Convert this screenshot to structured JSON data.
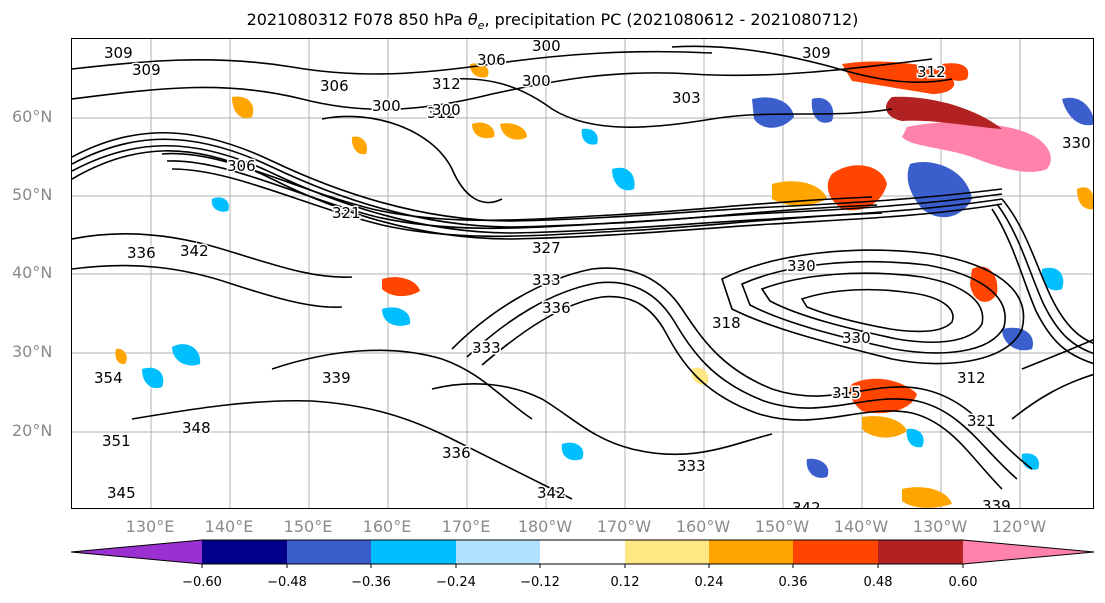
{
  "title_prefix": "2021080312 F078 850 hPa ",
  "title_symbol": "θ",
  "title_subscript": "e",
  "title_suffix": ", precipitation PC (2021080612 - 2021080712)",
  "lat_labels": [
    "60°N",
    "50°N",
    "40°N",
    "30°N",
    "20°N"
  ],
  "lon_labels": [
    "130°E",
    "140°E",
    "150°E",
    "160°E",
    "170°E",
    "180°W",
    "170°W",
    "160°W",
    "150°W",
    "140°W",
    "130°W",
    "120°W"
  ],
  "colorbar": {
    "tick_labels": [
      "−0.60",
      "−0.48",
      "−0.36",
      "−0.24",
      "−0.12",
      "0.12",
      "0.24",
      "0.36",
      "0.48",
      "0.60"
    ],
    "colors": [
      "#9b30d0",
      "#00008b",
      "#3a5fcd",
      "#00bfff",
      "#b0e2ff",
      "#ffffff",
      "#ffe784",
      "#ffa500",
      "#ff4500",
      "#b22222",
      "#ff82ab"
    ]
  },
  "contour_labels": [
    "309",
    "306",
    "300",
    "312",
    "309",
    "306",
    "300",
    "312",
    "303",
    "300",
    "306",
    "312",
    "309",
    "321",
    "336",
    "342",
    "327",
    "333",
    "330",
    "336",
    "333",
    "318",
    "330",
    "339",
    "312",
    "330",
    "354",
    "348",
    "336",
    "315",
    "321",
    "333",
    "342",
    "339",
    "342",
    "345",
    "351",
    "300"
  ],
  "shading_colors": {
    "positive_light": "#ffe784",
    "positive_mid": "#ffa500",
    "positive_strong": "#ff4500",
    "positive_darker": "#b22222",
    "positive_max": "#ff82ab",
    "negative_light": "#b0e2ff",
    "negative_mid": "#00bfff",
    "negative_strong": "#3a5fcd",
    "negative_darker": "#00008b"
  }
}
